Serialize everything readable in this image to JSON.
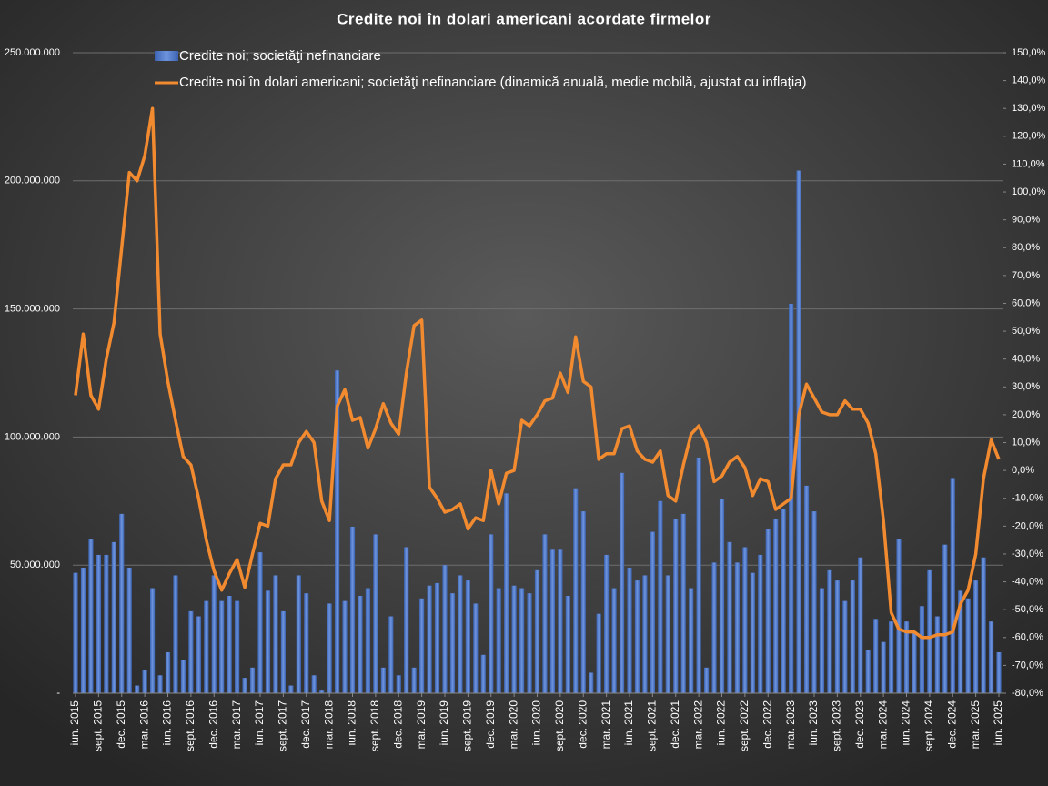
{
  "chart_data": {
    "type": "bar+line",
    "title": "Credite  noi  în  dolari  americani  acordate  firmelor",
    "categories": [
      "iun. 2015",
      null,
      null,
      "sept. 2015",
      null,
      null,
      "dec. 2015",
      null,
      null,
      "mar. 2016",
      null,
      null,
      "iun. 2016",
      null,
      null,
      "sept. 2016",
      null,
      null,
      "dec. 2016",
      null,
      null,
      "mar. 2017",
      null,
      null,
      "iun. 2017",
      null,
      null,
      "sept. 2017",
      null,
      null,
      "dec. 2017",
      null,
      null,
      "mar. 2018",
      null,
      null,
      "iun. 2018",
      null,
      null,
      "sept. 2018",
      null,
      null,
      "dec. 2018",
      null,
      null,
      "mar. 2019",
      null,
      null,
      "iun. 2019",
      null,
      null,
      "sept. 2019",
      null,
      null,
      "dec. 2019",
      null,
      null,
      "mar. 2020",
      null,
      null,
      "iun. 2020",
      null,
      null,
      "sept. 2020",
      null,
      null,
      "dec. 2020",
      null,
      null,
      "mar. 2021",
      null,
      null,
      "iun. 2021",
      null,
      null,
      "sept. 2021",
      null,
      null,
      "dec. 2021",
      null,
      null,
      "mar. 2022",
      null,
      null,
      "iun. 2022",
      null,
      null,
      "sept. 2022",
      null,
      null,
      "dec. 2022",
      null,
      null,
      "mar. 2023",
      null,
      null,
      "iun. 2023",
      null,
      null,
      "sept. 2023",
      null,
      null,
      "dec. 2023",
      null,
      null,
      "mar. 2024",
      null,
      null,
      "iun. 2024",
      null,
      null,
      "sept. 2024",
      null,
      null,
      "dec. 2024",
      null,
      null,
      "mar. 2025",
      null,
      null,
      "iun. 2025"
    ],
    "series": [
      {
        "name": "Credite noi; societăţi nefinanciare",
        "type": "bar",
        "color": "#4472c4",
        "axis": "y",
        "values": [
          47000000,
          49000000,
          60000000,
          54000000,
          54000000,
          59000000,
          70000000,
          49000000,
          3000000,
          9000000,
          41000000,
          7000000,
          16000000,
          46000000,
          13000000,
          32000000,
          30000000,
          36000000,
          46000000,
          36000000,
          38000000,
          36000000,
          6000000,
          10000000,
          55000000,
          40000000,
          46000000,
          32000000,
          3000000,
          46000000,
          39000000,
          7000000,
          1000000,
          35000000,
          126000000,
          36000000,
          65000000,
          38000000,
          41000000,
          62000000,
          10000000,
          30000000,
          7000000,
          57000000,
          10000000,
          37000000,
          42000000,
          43000000,
          50000000,
          39000000,
          46000000,
          44000000,
          35000000,
          15000000,
          62000000,
          41000000,
          78000000,
          42000000,
          41000000,
          39000000,
          48000000,
          62000000,
          56000000,
          56000000,
          38000000,
          80000000,
          71000000,
          8000000,
          31000000,
          54000000,
          41000000,
          86000000,
          49000000,
          44000000,
          46000000,
          63000000,
          75000000,
          46000000,
          68000000,
          70000000,
          41000000,
          92000000,
          10000000,
          51000000,
          76000000,
          59000000,
          51000000,
          57000000,
          47000000,
          54000000,
          64000000,
          68000000,
          72000000,
          152000000,
          204000000,
          81000000,
          71000000,
          41000000,
          48000000,
          44000000,
          36000000,
          44000000,
          53000000,
          17000000,
          29000000,
          20000000,
          28000000,
          60000000,
          28000000,
          24000000,
          34000000,
          48000000,
          30000000,
          58000000,
          84000000,
          40000000,
          37000000,
          44000000,
          53000000,
          28000000,
          16000000
        ]
      },
      {
        "name": "Credite noi în dolari americani; societăţi nefinanciare (dinamică anuală, medie mobilă, ajustat cu inflaţia)",
        "type": "line",
        "color": "#f28a30",
        "axis": "y2",
        "values": [
          27,
          49,
          27,
          22,
          40,
          53,
          80,
          107,
          104,
          113,
          130,
          49,
          32,
          18,
          5,
          2,
          -10,
          -25,
          -36,
          -43,
          -37,
          -32,
          -42,
          -30,
          -19,
          -20,
          -3,
          2,
          2,
          10,
          14,
          10,
          -11,
          -18,
          23,
          29,
          18,
          19,
          8,
          15,
          24,
          17,
          13,
          35,
          52,
          54,
          -6,
          -10,
          -15,
          -14,
          -12,
          -21,
          -17,
          -18,
          0,
          -12,
          -1,
          0,
          18,
          16,
          20,
          25,
          26,
          35,
          28,
          48,
          32,
          30,
          4,
          6,
          6,
          15,
          16,
          7,
          4,
          3,
          7,
          -9,
          -11,
          2,
          13,
          16,
          10,
          -4,
          -2,
          3,
          5,
          1,
          -9,
          -3,
          -4,
          -14,
          -12,
          -10,
          20,
          31,
          26,
          21,
          20,
          20,
          25,
          22,
          22,
          17,
          6,
          -18,
          -51,
          -57,
          -58,
          -58,
          -60,
          -60,
          -59,
          -59,
          -58,
          -48,
          -43,
          -30,
          -3,
          11,
          4
        ]
      }
    ],
    "ylim": [
      0,
      250000000
    ],
    "yticks": [
      {
        "value": 0,
        "label": "-"
      },
      {
        "value": 50000000,
        "label": "50.000.000"
      },
      {
        "value": 100000000,
        "label": "100.000.000"
      },
      {
        "value": 150000000,
        "label": "150.000.000"
      },
      {
        "value": 200000000,
        "label": "200.000.000"
      },
      {
        "value": 250000000,
        "label": "250.000.000"
      }
    ],
    "y2lim": [
      -80,
      150
    ],
    "y2ticks": [
      {
        "value": -80,
        "label": "-80,0%"
      },
      {
        "value": -70,
        "label": "-70,0%"
      },
      {
        "value": -60,
        "label": "-60,0%"
      },
      {
        "value": -50,
        "label": "-50,0%"
      },
      {
        "value": -40,
        "label": "-40,0%"
      },
      {
        "value": -30,
        "label": "-30,0%"
      },
      {
        "value": -20,
        "label": "-20,0%"
      },
      {
        "value": -10,
        "label": "-10,0%"
      },
      {
        "value": 0,
        "label": "0,0%"
      },
      {
        "value": 10,
        "label": "10,0%"
      },
      {
        "value": 20,
        "label": "20,0%"
      },
      {
        "value": 30,
        "label": "30,0%"
      },
      {
        "value": 40,
        "label": "40,0%"
      },
      {
        "value": 50,
        "label": "50,0%"
      },
      {
        "value": 60,
        "label": "60,0%"
      },
      {
        "value": 70,
        "label": "70,0%"
      },
      {
        "value": 80,
        "label": "80,0%"
      },
      {
        "value": 90,
        "label": "90,0%"
      },
      {
        "value": 100,
        "label": "100,0%"
      },
      {
        "value": 110,
        "label": "110,0%"
      },
      {
        "value": 120,
        "label": "120,0%"
      },
      {
        "value": 130,
        "label": "130,0%"
      },
      {
        "value": 140,
        "label": "140,0%"
      },
      {
        "value": 150,
        "label": "150,0%"
      }
    ],
    "grid": true,
    "legend": "top-left"
  }
}
